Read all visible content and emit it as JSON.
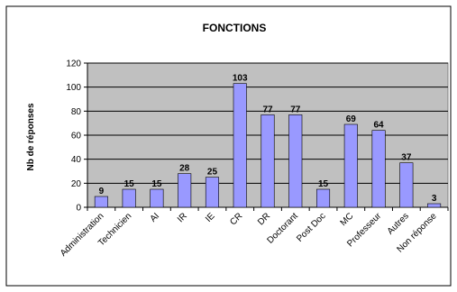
{
  "chart_data": {
    "type": "bar",
    "title": "FONCTIONS",
    "xlabel": "",
    "ylabel": "Nb de réponses",
    "ylim": [
      0,
      120
    ],
    "yticks": [
      0,
      20,
      40,
      60,
      80,
      100,
      120
    ],
    "grid": true,
    "legend": "none",
    "categories": [
      "Administration",
      "Technicien",
      "AI",
      "IR",
      "IE",
      "CR",
      "DR",
      "Doctorant",
      "Post Doc",
      "MC",
      "Professeur",
      "Autres",
      "Non réponse"
    ],
    "values": [
      9,
      15,
      15,
      28,
      25,
      103,
      77,
      77,
      15,
      69,
      64,
      37,
      3
    ],
    "colors": {
      "bar": "#9999ff",
      "plot_background": "#c0c0c0",
      "page_background": "#ffffff",
      "text": "#000000"
    }
  }
}
